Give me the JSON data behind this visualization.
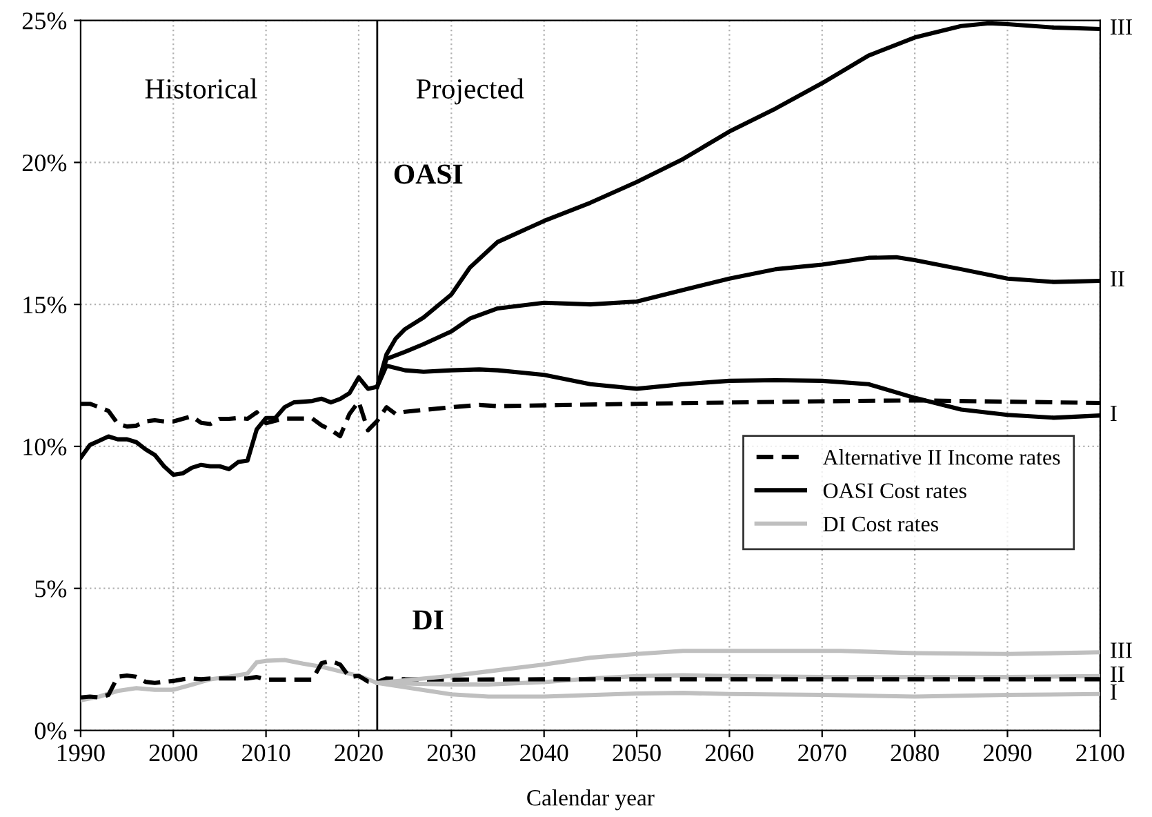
{
  "chart_data": {
    "type": "line",
    "xlabel": "Calendar year",
    "xlim": [
      1990,
      2100
    ],
    "xticks": [
      1990,
      2000,
      2010,
      2020,
      2030,
      2040,
      2050,
      2060,
      2070,
      2080,
      2090,
      2100
    ],
    "ylim": [
      0,
      25
    ],
    "yticks": [
      {
        "value": 0,
        "label": "0%"
      },
      {
        "value": 5,
        "label": "5%"
      },
      {
        "value": 10,
        "label": "10%"
      },
      {
        "value": 15,
        "label": "15%"
      },
      {
        "value": 20,
        "label": "20%"
      },
      {
        "value": 25,
        "label": "25%"
      }
    ],
    "grid": true,
    "legend": "center right",
    "marker": "none",
    "ref_lines": [
      {
        "axis": "x",
        "value": 2022,
        "color": "#000000",
        "line_style": "solid"
      }
    ],
    "annotations": [
      "Historical",
      "Projected",
      "OASI",
      "DI",
      "III",
      "II",
      "I",
      "III",
      "II",
      "I"
    ],
    "series": [
      {
        "name": "Alternative II Income rates",
        "color": "#000000",
        "line_style": "dashed",
        "x": [
          1990,
          1991,
          1992,
          1993,
          1994,
          1995,
          1996,
          1997,
          1998,
          1999,
          2000,
          2001,
          2002,
          2003,
          2004,
          2005,
          2006,
          2007,
          2008,
          2009,
          2010,
          2011,
          2012,
          2015,
          2016,
          2017,
          2018,
          2019,
          2020,
          2021,
          2022,
          2023,
          2024,
          2025,
          2030,
          2033,
          2035,
          2050,
          2070,
          2080,
          2100
        ],
        "values": [
          11.5,
          11.5,
          11.38,
          11.25,
          10.8,
          10.7,
          10.73,
          10.88,
          10.92,
          10.88,
          10.88,
          10.97,
          11.06,
          10.83,
          10.79,
          10.97,
          10.97,
          11.0,
          10.97,
          11.2,
          10.82,
          10.9,
          10.98,
          10.98,
          10.74,
          10.58,
          10.36,
          11.14,
          11.58,
          10.57,
          10.9,
          11.38,
          11.14,
          11.22,
          11.38,
          11.46,
          11.42,
          11.5,
          11.59,
          11.62,
          11.53
        ]
      },
      {
        "name": "OASI Cost rates",
        "color": "#000000",
        "line_style": "solid",
        "x": [
          1990,
          1991,
          1992,
          1993,
          1994,
          1995,
          1996,
          1997,
          1998,
          1999,
          2000,
          2001,
          2002,
          2003,
          2004,
          2005,
          2006,
          2007,
          2008,
          2009,
          2010,
          2011,
          2012,
          2013,
          2015,
          2016,
          2017,
          2018,
          2019,
          2020,
          2021,
          2022,
          2023,
          2025,
          2027,
          2030,
          2032,
          2035,
          2040,
          2045,
          2050,
          2055,
          2060,
          2065,
          2070,
          2075,
          2078,
          2080,
          2085,
          2090,
          2095,
          2100
        ],
        "values": [
          9.6,
          10.05,
          10.2,
          10.35,
          10.25,
          10.25,
          10.15,
          9.9,
          9.7,
          9.3,
          9.0,
          9.05,
          9.25,
          9.35,
          9.3,
          9.3,
          9.2,
          9.45,
          9.5,
          10.6,
          11.0,
          11.0,
          11.38,
          11.55,
          11.6,
          11.68,
          11.55,
          11.67,
          11.87,
          12.43,
          12.03,
          12.1,
          13.08,
          13.33,
          13.6,
          14.05,
          14.5,
          14.86,
          15.06,
          15.0,
          15.1,
          15.51,
          15.91,
          16.24,
          16.4,
          16.64,
          16.66,
          16.56,
          16.24,
          15.91,
          15.79,
          15.83
        ]
      },
      {
        "name": "DI Cost rates",
        "color": "#bfbfbf",
        "line_style": "solid",
        "x": [
          1990,
          1992,
          1994,
          1996,
          1998,
          2000,
          2002,
          2004,
          2006,
          2008,
          2009,
          2010,
          2012,
          2014,
          2016,
          2018,
          2020,
          2022,
          2030,
          2034,
          2040,
          2045,
          2050,
          2055,
          2060,
          2070,
          2080,
          2090,
          2100
        ],
        "values": [
          1.06,
          1.19,
          1.39,
          1.49,
          1.43,
          1.43,
          1.61,
          1.8,
          1.89,
          2.0,
          2.4,
          2.45,
          2.48,
          2.35,
          2.24,
          2.08,
          1.92,
          1.67,
          1.62,
          1.62,
          1.7,
          1.83,
          1.91,
          1.94,
          1.91,
          1.88,
          1.88,
          1.88,
          1.91
        ]
      },
      {
        "color": "#000000",
        "line_style": "dashed",
        "x": [
          1990,
          1991,
          1992,
          1993,
          1994,
          1995,
          1996,
          1997,
          1998,
          1999,
          2000,
          2001,
          2002,
          2003,
          2004,
          2005,
          2008,
          2009,
          2010,
          2015,
          2016,
          2017,
          2018,
          2019,
          2020,
          2021,
          2022,
          2023,
          2025,
          2030,
          2040,
          2060,
          2080,
          2100
        ],
        "values": [
          1.16,
          1.19,
          1.16,
          1.25,
          1.89,
          1.93,
          1.89,
          1.71,
          1.67,
          1.71,
          1.74,
          1.8,
          1.83,
          1.8,
          1.83,
          1.83,
          1.83,
          1.88,
          1.79,
          1.79,
          2.37,
          2.44,
          2.32,
          1.88,
          1.92,
          1.72,
          1.7,
          1.83,
          1.8,
          1.79,
          1.8,
          1.8,
          1.8,
          1.8
        ]
      },
      {
        "color": "#000000",
        "line_style": "solid",
        "x": [
          2022,
          2023,
          2024,
          2025,
          2027,
          2030,
          2032,
          2035,
          2040,
          2045,
          2050,
          2055,
          2060,
          2065,
          2070,
          2075,
          2080,
          2085,
          2088,
          2090,
          2095,
          2100
        ],
        "values": [
          12.1,
          13.24,
          13.8,
          14.13,
          14.54,
          15.35,
          16.3,
          17.2,
          17.94,
          18.58,
          19.31,
          20.12,
          21.09,
          21.9,
          22.79,
          23.76,
          24.4,
          24.8,
          24.9,
          24.87,
          24.75,
          24.7
        ]
      },
      {
        "color": "#000000",
        "line_style": "solid",
        "x": [
          2022,
          2023,
          2025,
          2027,
          2030,
          2033,
          2035,
          2040,
          2045,
          2050,
          2055,
          2060,
          2065,
          2070,
          2075,
          2080,
          2085,
          2090,
          2095,
          2100
        ],
        "values": [
          12.1,
          12.84,
          12.68,
          12.63,
          12.68,
          12.71,
          12.68,
          12.52,
          12.19,
          12.03,
          12.19,
          12.31,
          12.33,
          12.31,
          12.19,
          11.71,
          11.3,
          11.11,
          11.01,
          11.09
        ]
      },
      {
        "color": "#bfbfbf",
        "line_style": "solid",
        "x": [
          2022,
          2030,
          2034,
          2040,
          2045,
          2050,
          2055,
          2060,
          2070,
          2072,
          2080,
          2090,
          2100
        ],
        "values": [
          1.67,
          1.92,
          2.08,
          2.32,
          2.56,
          2.69,
          2.8,
          2.8,
          2.8,
          2.8,
          2.72,
          2.69,
          2.75
        ]
      },
      {
        "color": "#bfbfbf",
        "line_style": "solid",
        "x": [
          2022,
          2030,
          2034,
          2040,
          2050,
          2055,
          2060,
          2070,
          2080,
          2090,
          2100
        ],
        "values": [
          1.67,
          1.27,
          1.19,
          1.19,
          1.3,
          1.32,
          1.28,
          1.25,
          1.19,
          1.25,
          1.28
        ]
      }
    ]
  }
}
